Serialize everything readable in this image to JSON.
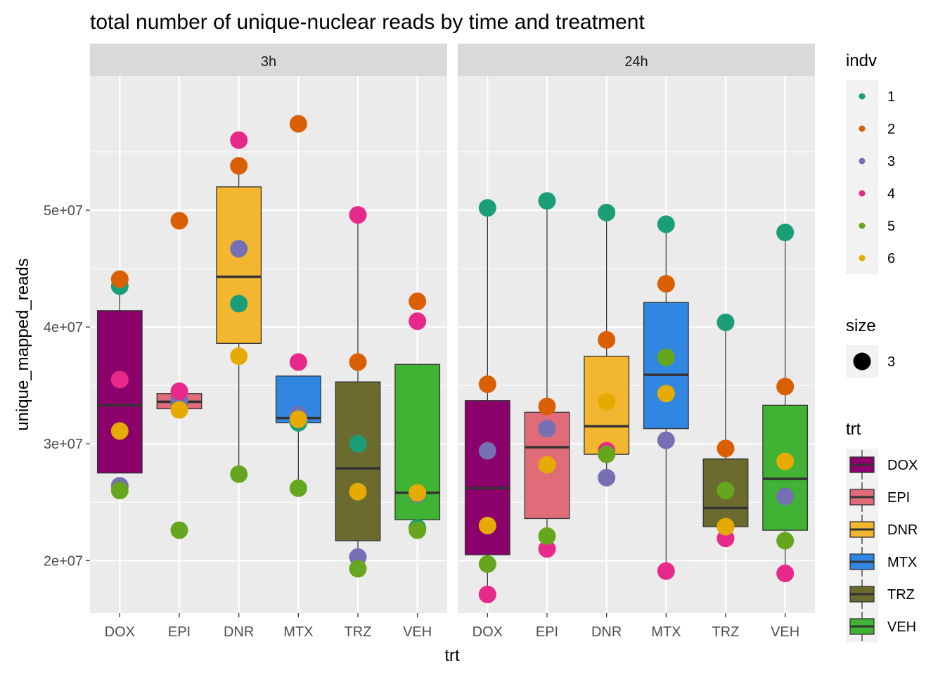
{
  "chart_data": {
    "type": "box",
    "title": "total number of unique-nuclear reads by time and treatment",
    "xlabel": "trt",
    "ylabel": "unique_mapped_reads",
    "ylim": [
      15500000,
      61500000
    ],
    "yticks": [
      20000000,
      30000000,
      40000000,
      50000000
    ],
    "ytick_labels": [
      "2e+07",
      "3e+07",
      "4e+07",
      "5e+07"
    ],
    "grid": true,
    "categories": [
      "DOX",
      "EPI",
      "DNR",
      "MTX",
      "TRZ",
      "VEH"
    ],
    "panels": [
      {
        "label": "3h",
        "boxes": [
          {
            "trt": "DOX",
            "lower": 27500000,
            "q1": 27500000,
            "median": 33300000,
            "q3": 41400000,
            "upper": 44100000
          },
          {
            "trt": "EPI",
            "lower": 33000000,
            "q1": 33000000,
            "median": 33600000,
            "q3": 34300000,
            "upper": 34300000
          },
          {
            "trt": "DNR",
            "lower": 27400000,
            "q1": 38600000,
            "median": 44300000,
            "q3": 52000000,
            "upper": 53800000
          },
          {
            "trt": "MTX",
            "lower": 26200000,
            "q1": 31800000,
            "median": 32200000,
            "q3": 35800000,
            "upper": 35800000
          },
          {
            "trt": "TRZ",
            "lower": 19300000,
            "q1": 21700000,
            "median": 27900000,
            "q3": 35300000,
            "upper": 49600000
          },
          {
            "trt": "VEH",
            "lower": 23500000,
            "q1": 23500000,
            "median": 25800000,
            "q3": 36800000,
            "upper": 36800000
          }
        ],
        "points": [
          {
            "trt": "DOX",
            "indv": "1",
            "value": 43500000
          },
          {
            "trt": "DOX",
            "indv": "2",
            "value": 44100000
          },
          {
            "trt": "DOX",
            "indv": "3",
            "value": 26400000
          },
          {
            "trt": "DOX",
            "indv": "4",
            "value": 35500000
          },
          {
            "trt": "DOX",
            "indv": "5",
            "value": 26000000
          },
          {
            "trt": "DOX",
            "indv": "6",
            "value": 31100000
          },
          {
            "trt": "EPI",
            "indv": "1",
            "value": 33500000
          },
          {
            "trt": "EPI",
            "indv": "2",
            "value": 49100000
          },
          {
            "trt": "EPI",
            "indv": "3",
            "value": 33800000
          },
          {
            "trt": "EPI",
            "indv": "4",
            "value": 34500000
          },
          {
            "trt": "EPI",
            "indv": "5",
            "value": 22600000
          },
          {
            "trt": "EPI",
            "indv": "6",
            "value": 32900000
          },
          {
            "trt": "DNR",
            "indv": "1",
            "value": 42000000
          },
          {
            "trt": "DNR",
            "indv": "2",
            "value": 53800000
          },
          {
            "trt": "DNR",
            "indv": "3",
            "value": 46700000
          },
          {
            "trt": "DNR",
            "indv": "4",
            "value": 56000000
          },
          {
            "trt": "DNR",
            "indv": "5",
            "value": 27400000
          },
          {
            "trt": "DNR",
            "indv": "6",
            "value": 37500000
          },
          {
            "trt": "MTX",
            "indv": "1",
            "value": 31800000
          },
          {
            "trt": "MTX",
            "indv": "2",
            "value": 57400000
          },
          {
            "trt": "MTX",
            "indv": "3",
            "value": 32500000
          },
          {
            "trt": "MTX",
            "indv": "4",
            "value": 37000000
          },
          {
            "trt": "MTX",
            "indv": "5",
            "value": 26200000
          },
          {
            "trt": "MTX",
            "indv": "6",
            "value": 32100000
          },
          {
            "trt": "TRZ",
            "indv": "1",
            "value": 30000000
          },
          {
            "trt": "TRZ",
            "indv": "2",
            "value": 37000000
          },
          {
            "trt": "TRZ",
            "indv": "3",
            "value": 20300000
          },
          {
            "trt": "TRZ",
            "indv": "4",
            "value": 49600000
          },
          {
            "trt": "TRZ",
            "indv": "5",
            "value": 19300000
          },
          {
            "trt": "TRZ",
            "indv": "6",
            "value": 25900000
          },
          {
            "trt": "VEH",
            "indv": "1",
            "value": 22800000
          },
          {
            "trt": "VEH",
            "indv": "2",
            "value": 42200000
          },
          {
            "trt": "VEH",
            "indv": "3",
            "value": 25700000
          },
          {
            "trt": "VEH",
            "indv": "4",
            "value": 40500000
          },
          {
            "trt": "VEH",
            "indv": "5",
            "value": 22600000
          },
          {
            "trt": "VEH",
            "indv": "6",
            "value": 25800000
          }
        ]
      },
      {
        "label": "24h",
        "boxes": [
          {
            "trt": "DOX",
            "lower": 17100000,
            "q1": 20500000,
            "median": 26200000,
            "q3": 33700000,
            "upper": 50200000
          },
          {
            "trt": "EPI",
            "lower": 21000000,
            "q1": 23600000,
            "median": 29700000,
            "q3": 32700000,
            "upper": 50800000
          },
          {
            "trt": "DNR",
            "lower": 27100000,
            "q1": 29100000,
            "median": 31500000,
            "q3": 37500000,
            "upper": 49800000
          },
          {
            "trt": "MTX",
            "lower": 19100000,
            "q1": 31300000,
            "median": 35900000,
            "q3": 42100000,
            "upper": 48800000
          },
          {
            "trt": "TRZ",
            "lower": 21900000,
            "q1": 22900000,
            "median": 24500000,
            "q3": 28700000,
            "upper": 40400000
          },
          {
            "trt": "VEH",
            "lower": 18900000,
            "q1": 22600000,
            "median": 27000000,
            "q3": 33300000,
            "upper": 48100000
          }
        ],
        "points": [
          {
            "trt": "DOX",
            "indv": "1",
            "value": 50200000
          },
          {
            "trt": "DOX",
            "indv": "2",
            "value": 35100000
          },
          {
            "trt": "DOX",
            "indv": "3",
            "value": 29400000
          },
          {
            "trt": "DOX",
            "indv": "4",
            "value": 17100000
          },
          {
            "trt": "DOX",
            "indv": "5",
            "value": 19700000
          },
          {
            "trt": "DOX",
            "indv": "6",
            "value": 23000000
          },
          {
            "trt": "EPI",
            "indv": "1",
            "value": 50800000
          },
          {
            "trt": "EPI",
            "indv": "2",
            "value": 33200000
          },
          {
            "trt": "EPI",
            "indv": "3",
            "value": 31300000
          },
          {
            "trt": "EPI",
            "indv": "4",
            "value": 21000000
          },
          {
            "trt": "EPI",
            "indv": "5",
            "value": 22100000
          },
          {
            "trt": "EPI",
            "indv": "6",
            "value": 28200000
          },
          {
            "trt": "DNR",
            "indv": "1",
            "value": 49800000
          },
          {
            "trt": "DNR",
            "indv": "2",
            "value": 38900000
          },
          {
            "trt": "DNR",
            "indv": "3",
            "value": 27100000
          },
          {
            "trt": "DNR",
            "indv": "4",
            "value": 29400000
          },
          {
            "trt": "DNR",
            "indv": "5",
            "value": 29100000
          },
          {
            "trt": "DNR",
            "indv": "6",
            "value": 33600000
          },
          {
            "trt": "MTX",
            "indv": "1",
            "value": 48800000
          },
          {
            "trt": "MTX",
            "indv": "2",
            "value": 43700000
          },
          {
            "trt": "MTX",
            "indv": "3",
            "value": 30300000
          },
          {
            "trt": "MTX",
            "indv": "4",
            "value": 19100000
          },
          {
            "trt": "MTX",
            "indv": "5",
            "value": 37400000
          },
          {
            "trt": "MTX",
            "indv": "6",
            "value": 34300000
          },
          {
            "trt": "TRZ",
            "indv": "1",
            "value": 40400000
          },
          {
            "trt": "TRZ",
            "indv": "2",
            "value": 29600000
          },
          {
            "trt": "TRZ",
            "indv": "3",
            "value": 22900000
          },
          {
            "trt": "TRZ",
            "indv": "4",
            "value": 21900000
          },
          {
            "trt": "TRZ",
            "indv": "5",
            "value": 26000000
          },
          {
            "trt": "TRZ",
            "indv": "6",
            "value": 22900000
          },
          {
            "trt": "VEH",
            "indv": "1",
            "value": 48100000
          },
          {
            "trt": "VEH",
            "indv": "2",
            "value": 34900000
          },
          {
            "trt": "VEH",
            "indv": "3",
            "value": 25500000
          },
          {
            "trt": "VEH",
            "indv": "4",
            "value": 18900000
          },
          {
            "trt": "VEH",
            "indv": "5",
            "value": 21700000
          },
          {
            "trt": "VEH",
            "indv": "6",
            "value": 28500000
          }
        ]
      }
    ],
    "trt_colors": {
      "DOX": "#8B006B",
      "EPI": "#E06B79",
      "DNR": "#F2B630",
      "MTX": "#3086E0",
      "TRZ": "#6B6B30",
      "VEH": "#41B334"
    },
    "indv_colors": {
      "1": "#1B9E77",
      "2": "#D95F02",
      "3": "#7570B3",
      "4": "#E7298A",
      "5": "#66A61E",
      "6": "#E6AB02"
    },
    "legend_placement": "right",
    "legends": {
      "indv": {
        "title": "indv",
        "items": [
          "1",
          "2",
          "3",
          "4",
          "5",
          "6"
        ]
      },
      "size": {
        "title": "size",
        "items": [
          "3"
        ]
      },
      "trt": {
        "title": "trt",
        "items": [
          "DOX",
          "EPI",
          "DNR",
          "MTX",
          "TRZ",
          "VEH"
        ]
      }
    }
  }
}
